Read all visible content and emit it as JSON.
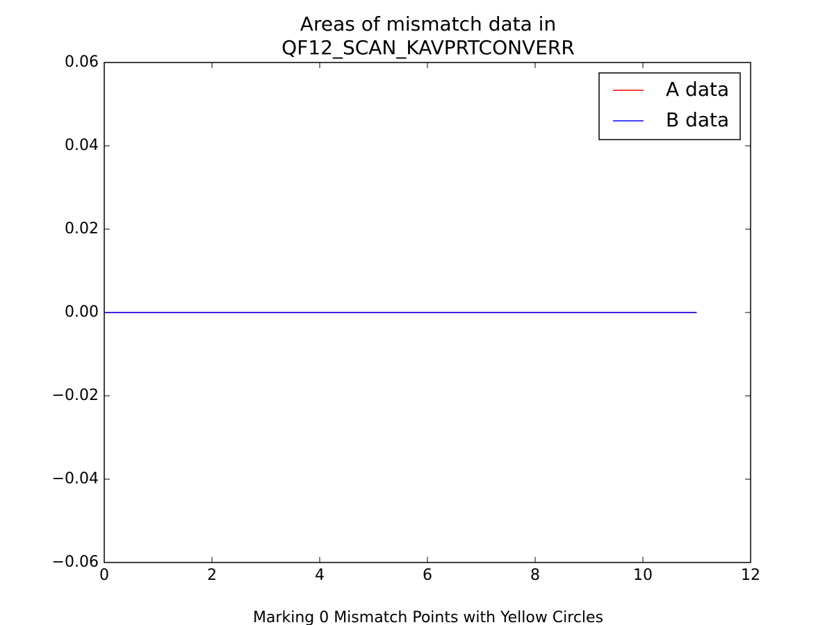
{
  "chart_data": {
    "type": "line",
    "title": [
      "Areas of mismatch data in",
      "QF12_SCAN_KAVPRTCONVERR"
    ],
    "x_label": "Marking 0 Mismatch Points with Yellow Circles",
    "x": [
      0,
      1,
      2,
      3,
      4,
      5,
      6,
      7,
      8,
      9,
      10,
      11
    ],
    "series": [
      {
        "name": "A data",
        "color": "#ff0000",
        "values": [
          0,
          0,
          0,
          0,
          0,
          0,
          0,
          0,
          0,
          0,
          0,
          0
        ]
      },
      {
        "name": "B data",
        "color": "#0000ff",
        "values": [
          0,
          0,
          0,
          0,
          0,
          0,
          0,
          0,
          0,
          0,
          0,
          0
        ]
      }
    ],
    "xlim": [
      0,
      12
    ],
    "xticks": [
      0,
      2,
      4,
      6,
      8,
      10,
      12
    ],
    "ylim": [
      -0.06,
      0.06
    ],
    "yticks": [
      {
        "value": -0.06,
        "label": "−0.06"
      },
      {
        "value": -0.04,
        "label": "−0.04"
      },
      {
        "value": -0.02,
        "label": "−0.02"
      },
      {
        "value": 0,
        "label": "0.00"
      },
      0.02,
      0.04,
      0.06
    ],
    "grid": false,
    "legend": "upper right"
  }
}
